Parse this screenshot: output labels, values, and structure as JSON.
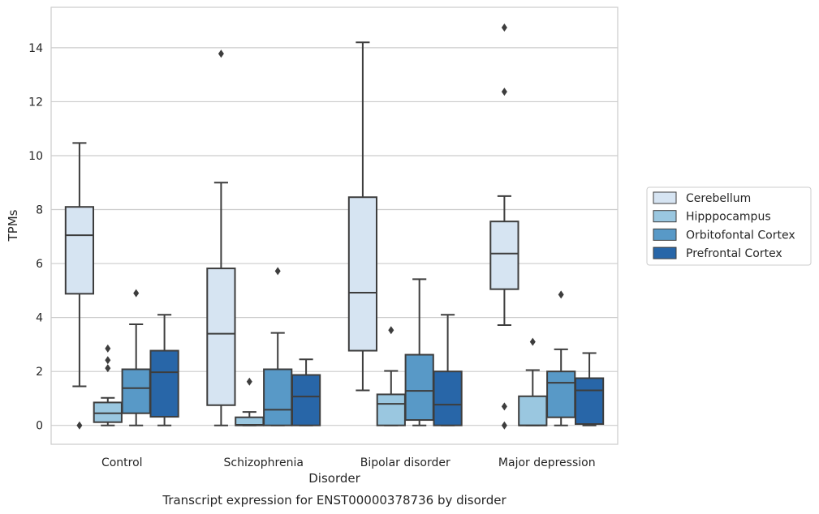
{
  "chart_data": {
    "type": "box",
    "title": "",
    "caption": "Transcript expression for ENST00000378736 by disorder",
    "xlabel": "Disorder",
    "ylabel": "TPMs",
    "ylim": [
      -0.7,
      15.5
    ],
    "yticks": [
      0,
      2,
      4,
      6,
      8,
      10,
      12,
      14
    ],
    "grid": "y",
    "legend_position": "right",
    "categories": [
      "Control",
      "Schizophrenia",
      "Bipolar disorder",
      "Major depression"
    ],
    "series": [
      {
        "name": "Cerebellum",
        "color": "#d6e4f2",
        "boxes": [
          {
            "whislo": 1.45,
            "q1": 4.88,
            "med": 7.05,
            "q3": 8.1,
            "whishi": 10.47,
            "fliers": [
              0.0
            ]
          },
          {
            "whislo": 0.0,
            "q1": 0.75,
            "med": 3.4,
            "q3": 5.82,
            "whishi": 9.0,
            "fliers": [
              13.78
            ]
          },
          {
            "whislo": 1.3,
            "q1": 2.77,
            "med": 4.92,
            "q3": 8.46,
            "whishi": 14.2,
            "fliers": []
          },
          {
            "whislo": 3.72,
            "q1": 5.05,
            "med": 6.37,
            "q3": 7.56,
            "whishi": 8.5,
            "fliers": [
              14.75,
              12.37,
              0.7,
              0.0
            ]
          }
        ]
      },
      {
        "name": "Hipppocampus",
        "color": "#9ac7e0",
        "boxes": [
          {
            "whislo": 0.0,
            "q1": 0.12,
            "med": 0.45,
            "q3": 0.85,
            "whishi": 1.02,
            "fliers": [
              2.85,
              2.42,
              2.12
            ]
          },
          {
            "whislo": 0.0,
            "q1": 0.0,
            "med": 0.02,
            "q3": 0.3,
            "whishi": 0.5,
            "fliers": [
              1.62
            ]
          },
          {
            "whislo": 0.0,
            "q1": 0.0,
            "med": 0.8,
            "q3": 1.15,
            "whishi": 2.02,
            "fliers": [
              3.53
            ]
          },
          {
            "whislo": 0.0,
            "q1": 0.0,
            "med": 0.0,
            "q3": 1.08,
            "whishi": 2.05,
            "fliers": [
              3.1
            ]
          }
        ]
      },
      {
        "name": "Orbitofontal Cortex",
        "color": "#5899c7",
        "boxes": [
          {
            "whislo": 0.0,
            "q1": 0.45,
            "med": 1.38,
            "q3": 2.08,
            "whishi": 3.75,
            "fliers": [
              4.9
            ]
          },
          {
            "whislo": 0.0,
            "q1": 0.0,
            "med": 0.58,
            "q3": 2.08,
            "whishi": 3.43,
            "fliers": [
              5.72
            ]
          },
          {
            "whislo": 0.0,
            "q1": 0.2,
            "med": 1.28,
            "q3": 2.62,
            "whishi": 5.42,
            "fliers": []
          },
          {
            "whislo": 0.0,
            "q1": 0.3,
            "med": 1.58,
            "q3": 2.0,
            "whishi": 2.82,
            "fliers": [
              4.85
            ]
          }
        ]
      },
      {
        "name": "Prefrontal Cortex",
        "color": "#2866a8",
        "boxes": [
          {
            "whislo": 0.0,
            "q1": 0.32,
            "med": 1.97,
            "q3": 2.77,
            "whishi": 4.1,
            "fliers": []
          },
          {
            "whislo": 0.0,
            "q1": 0.0,
            "med": 1.07,
            "q3": 1.87,
            "whishi": 2.45,
            "fliers": []
          },
          {
            "whislo": 0.0,
            "q1": 0.0,
            "med": 0.77,
            "q3": 2.0,
            "whishi": 4.1,
            "fliers": []
          },
          {
            "whislo": 0.0,
            "q1": 0.05,
            "med": 1.3,
            "q3": 1.75,
            "whishi": 2.68,
            "fliers": []
          }
        ]
      }
    ]
  }
}
